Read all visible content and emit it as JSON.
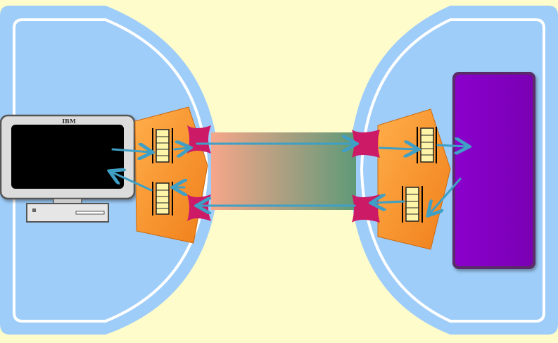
{
  "diagram": {
    "computer": {
      "brand_label": "IBM"
    },
    "colors": {
      "background": "#fffccb",
      "node_fill": "#9ecdf9",
      "node_outline": "#ffffff",
      "adapter_orange": "#ff9a33",
      "connector_magenta": "#cc1a66",
      "arrow": "#3f9fc4",
      "server_purple": "#8b00c8",
      "channel_left": "#f7a68a",
      "channel_right": "#5f9a78",
      "buffer_fill": "#fff5a8"
    },
    "icons": [
      "computer-icon",
      "buffer-icon",
      "arrow-icon",
      "server-icon",
      "connector-icon"
    ]
  }
}
